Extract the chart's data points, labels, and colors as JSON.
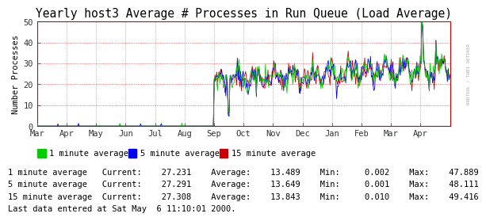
{
  "title": "Yearly host3 Average # Processes in Run Queue (Load Average)",
  "ylabel": "Number Processes",
  "ylim": [
    0,
    50
  ],
  "yticks": [
    0,
    10,
    20,
    30,
    40,
    50
  ],
  "x_month_labels": [
    "Mar",
    "Apr",
    "May",
    "Jun",
    "Jul",
    "Aug",
    "Sep",
    "Oct",
    "Nov",
    "Dec",
    "Jan",
    "Feb",
    "Mar",
    "Apr"
  ],
  "bg_color": "#ffffff",
  "plot_bg_color": "#ffffff",
  "grid_color_h": "#cc0000",
  "grid_color_v": "#555555",
  "line1_color": "#00cc00",
  "line2_color": "#0000ee",
  "line3_color": "#cc0000",
  "axis_color": "#cc0000",
  "watermark": "RRDTOOL / TOBI OETIKER",
  "legend": [
    {
      "label": "1 minute average",
      "color": "#00cc00"
    },
    {
      "label": "5 minute average",
      "color": "#0000ee"
    },
    {
      "label": "15 minute average",
      "color": "#cc0000"
    }
  ],
  "stats": [
    {
      "name": "1 minute average",
      "current": 27.231,
      "average": 13.489,
      "min": 0.002,
      "max": 47.889
    },
    {
      "name": "5 minute average",
      "current": 27.291,
      "average": 13.649,
      "min": 0.001,
      "max": 48.111
    },
    {
      "name": "15 minute average",
      "current": 27.308,
      "average": 13.843,
      "min": 0.01,
      "max": 49.416
    }
  ],
  "footer": "Last data entered at Sat May  6 11:10:01 2000.",
  "title_fontsize": 10.5,
  "label_fontsize": 7.5,
  "tick_fontsize": 7.5,
  "stats_fontsize": 7.5,
  "n_points": 500
}
